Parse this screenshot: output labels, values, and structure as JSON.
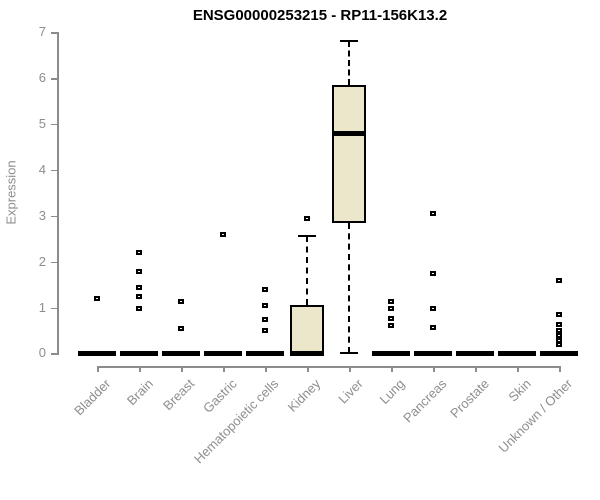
{
  "chart_data": {
    "type": "box",
    "title": "ENSG00000253215 - RP11-156K13.2",
    "ylabel": "Expression",
    "xlabel": "",
    "ylim": [
      0,
      7
    ],
    "yticks": [
      0,
      1,
      2,
      3,
      4,
      5,
      6,
      7
    ],
    "grid": "off",
    "legend": "none",
    "categories": [
      "Bladder",
      "Brain",
      "Breast",
      "Gastric",
      "Hematopoietic cells",
      "Kidney",
      "Liver",
      "Lung",
      "Pancreas",
      "Prostate",
      "Skin",
      "Unknown / Other"
    ],
    "series": [
      {
        "name": "Bladder",
        "whisker_low": 0,
        "q1": 0,
        "median": 0,
        "q3": 0,
        "whisker_high": 0,
        "outliers": [
          1.2
        ]
      },
      {
        "name": "Brain",
        "whisker_low": 0,
        "q1": 0,
        "median": 0,
        "q3": 0,
        "whisker_high": 0,
        "outliers": [
          2.2,
          1.8,
          1.45,
          1.25,
          1.0
        ]
      },
      {
        "name": "Breast",
        "whisker_low": 0,
        "q1": 0,
        "median": 0,
        "q3": 0,
        "whisker_high": 0,
        "outliers": [
          1.15,
          0.55
        ]
      },
      {
        "name": "Gastric",
        "whisker_low": 0,
        "q1": 0,
        "median": 0,
        "q3": 0,
        "whisker_high": 0,
        "outliers": [
          2.6
        ]
      },
      {
        "name": "Hematopoietic cells",
        "whisker_low": 0,
        "q1": 0,
        "median": 0,
        "q3": 0,
        "whisker_high": 0,
        "outliers": [
          1.4,
          1.05,
          0.76,
          0.51
        ]
      },
      {
        "name": "Kidney",
        "whisker_low": 0,
        "q1": 0,
        "median": 0,
        "q3": 1.05,
        "whisker_high": 2.55,
        "outliers": [
          2.95
        ]
      },
      {
        "name": "Liver",
        "whisker_low": 0,
        "q1": 2.85,
        "median": 4.8,
        "q3": 5.85,
        "whisker_high": 6.8,
        "outliers": []
      },
      {
        "name": "Lung",
        "whisker_low": 0,
        "q1": 0,
        "median": 0,
        "q3": 0,
        "whisker_high": 0,
        "outliers": [
          1.15,
          1.0,
          0.77,
          0.62
        ]
      },
      {
        "name": "Pancreas",
        "whisker_low": 0,
        "q1": 0,
        "median": 0,
        "q3": 0,
        "whisker_high": 0,
        "outliers": [
          3.05,
          1.75,
          1.0,
          0.58
        ]
      },
      {
        "name": "Prostate",
        "whisker_low": 0,
        "q1": 0,
        "median": 0,
        "q3": 0,
        "whisker_high": 0,
        "outliers": []
      },
      {
        "name": "Skin",
        "whisker_low": 0,
        "q1": 0,
        "median": 0,
        "q3": 0,
        "whisker_high": 0,
        "outliers": []
      },
      {
        "name": "Unknown / Other",
        "whisker_low": 0,
        "q1": 0,
        "median": 0,
        "q3": 0,
        "whisker_high": 0,
        "outliers": [
          1.6,
          0.85,
          0.65,
          0.52,
          0.4,
          0.3,
          0.2
        ]
      }
    ],
    "colors": {
      "box_fill": "#ece7cb",
      "box_border": "#000000",
      "median": "#000000",
      "outlier": "#000000",
      "axis": "#8c8c8c",
      "tick_text": "#8e8e8e",
      "title_text": "#000000",
      "background": "#ffffff"
    }
  }
}
